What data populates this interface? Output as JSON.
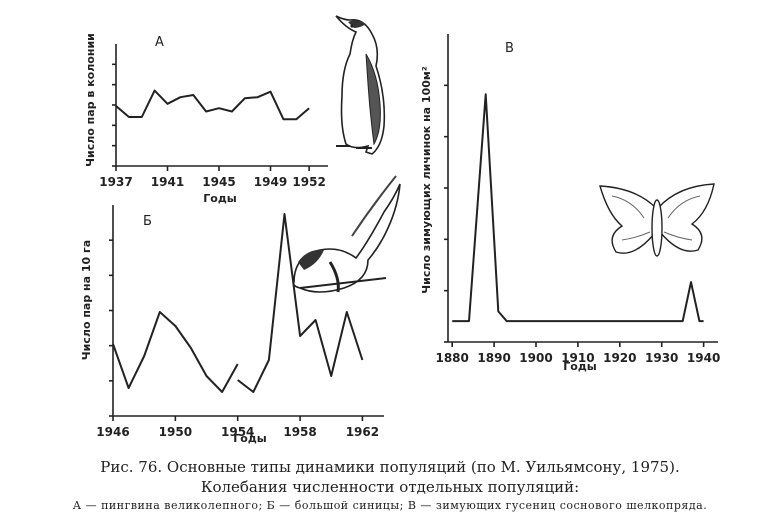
{
  "caption": {
    "line1": "Рис. 76. Основные типы динамики популяций (по М. Уильямсону, 1975).",
    "line2": "Колебания численности отдельных популяций:",
    "line3": "А — пингвина великолепного; Б — большой синицы; В — зимующих гусениц соснового шелкопряда."
  },
  "icons": [
    "penguin-icon",
    "tit-bird-icon",
    "moth-icon"
  ],
  "chart_data": [
    {
      "type": "line",
      "panel_label": "А",
      "xlabel": "Годы",
      "ylabel": "Число пар в колонии",
      "xticks": [
        1937,
        1941,
        1945,
        1949,
        1952
      ],
      "xlim": [
        1937,
        1953
      ],
      "ylim": [
        0,
        100
      ],
      "series": [
        {
          "segments": [
            {
              "x": [
                1937,
                1938,
                1939,
                1940,
                1941,
                1942,
                1943,
                1944,
                1945,
                1946,
                1947,
                1948,
                1949,
                1950,
                1951,
                1952
              ],
              "y": [
                40,
                30,
                30,
                54,
                42,
                48,
                50,
                35,
                38,
                35,
                47,
                48,
                53,
                28,
                28,
                38
              ]
            }
          ]
        }
      ]
    },
    {
      "type": "line",
      "panel_label": "Б",
      "xlabel": "Годы",
      "ylabel": "Число пар на 10 га",
      "xticks": [
        1946,
        1950,
        1954,
        1958,
        1962
      ],
      "xlim": [
        1946,
        1963
      ],
      "ylim": [
        0,
        100
      ],
      "series": [
        {
          "segments": [
            {
              "x": [
                1946,
                1947,
                1948,
                1949,
                1950,
                1951,
                1952,
                1953,
                1954
              ],
              "y": [
                28,
                6,
                22,
                44,
                37,
                26,
                12,
                4,
                18
              ]
            },
            {
              "x": [
                1954,
                1955,
                1956,
                1957,
                1958,
                1959,
                1960,
                1961,
                1962
              ],
              "y": [
                10,
                4,
                20,
                93,
                32,
                40,
                12,
                44,
                20
              ]
            }
          ]
        }
      ]
    },
    {
      "type": "line",
      "panel_label": "В",
      "xlabel": "Годы",
      "ylabel": "Число зимующих личинок на 100м²",
      "xticks": [
        1880,
        1890,
        1900,
        1910,
        1920,
        1930,
        1940
      ],
      "xlim": [
        1879,
        1942
      ],
      "ylim": [
        0,
        100
      ],
      "series": [
        {
          "segments": [
            {
              "x": [
                1880,
                1884,
                1888,
                1891,
                1893,
                1900,
                1910,
                1920,
                1930,
                1935,
                1937,
                1939,
                1940
              ],
              "y": [
                2,
                2,
                95,
                6,
                2,
                2,
                2,
                2,
                2,
                2,
                18,
                2,
                2
              ]
            }
          ]
        }
      ]
    }
  ]
}
